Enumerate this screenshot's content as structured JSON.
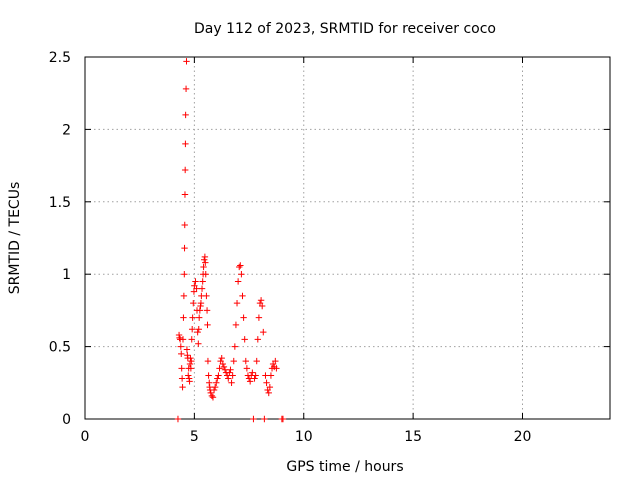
{
  "chart_data": {
    "type": "scatter",
    "title": "Day 112 of 2023, SRMTID for receiver coco",
    "xlabel": "GPS time / hours",
    "ylabel": "SRMTID / TECUs",
    "xlim": [
      0,
      24
    ],
    "ylim": [
      0,
      2.5
    ],
    "xticks": [
      0,
      5,
      10,
      15,
      20
    ],
    "yticks": [
      0,
      0.5,
      1,
      1.5,
      2,
      2.5
    ],
    "grid": true,
    "marker": "+",
    "color": "#ff0000",
    "series": [
      {
        "name": "SRMTID",
        "x": [
          4.25,
          4.3,
          4.32,
          4.35,
          4.38,
          4.4,
          4.42,
          4.44,
          4.46,
          4.48,
          4.5,
          4.52,
          4.54,
          4.55,
          4.56,
          4.57,
          4.58,
          4.59,
          4.6,
          4.62,
          4.64,
          4.66,
          4.68,
          4.7,
          4.72,
          4.74,
          4.76,
          4.78,
          4.8,
          4.82,
          4.84,
          4.86,
          4.88,
          4.9,
          4.92,
          4.95,
          4.98,
          5.0,
          5.05,
          5.1,
          5.12,
          5.15,
          5.18,
          5.2,
          5.22,
          5.25,
          5.28,
          5.3,
          5.32,
          5.35,
          5.38,
          5.4,
          5.42,
          5.45,
          5.48,
          5.5,
          5.52,
          5.55,
          5.58,
          5.6,
          5.62,
          5.65,
          5.68,
          5.7,
          5.72,
          5.75,
          5.8,
          5.85,
          5.9,
          5.95,
          6.0,
          6.05,
          6.1,
          6.15,
          6.2,
          6.25,
          6.3,
          6.35,
          6.4,
          6.45,
          6.5,
          6.55,
          6.6,
          6.65,
          6.7,
          6.75,
          6.8,
          6.85,
          6.9,
          6.95,
          7.0,
          7.05,
          7.1,
          7.15,
          7.2,
          7.25,
          7.3,
          7.35,
          7.4,
          7.45,
          7.5,
          7.55,
          7.6,
          7.65,
          7.7,
          7.75,
          7.8,
          7.85,
          7.9,
          7.95,
          8.0,
          8.05,
          8.1,
          8.15,
          8.2,
          8.25,
          8.3,
          8.35,
          8.4,
          8.45,
          8.5,
          8.55,
          8.6,
          8.65,
          8.7,
          8.75,
          9.0,
          9.05
        ],
        "y": [
          0.0,
          0.58,
          0.56,
          0.55,
          0.5,
          0.45,
          0.35,
          0.28,
          0.22,
          0.55,
          0.7,
          0.85,
          1.0,
          1.18,
          1.34,
          1.55,
          1.72,
          1.9,
          2.1,
          2.28,
          2.47,
          0.48,
          0.44,
          0.42,
          0.3,
          0.35,
          0.28,
          0.26,
          0.38,
          0.42,
          0.35,
          0.4,
          0.55,
          0.62,
          0.7,
          0.8,
          0.88,
          0.92,
          0.95,
          0.9,
          0.75,
          0.6,
          0.52,
          0.62,
          0.7,
          0.75,
          0.78,
          0.8,
          0.85,
          0.9,
          0.95,
          1.0,
          1.05,
          1.1,
          1.12,
          1.08,
          1.0,
          0.85,
          0.75,
          0.65,
          0.4,
          0.3,
          0.25,
          0.22,
          0.2,
          0.18,
          0.16,
          0.15,
          0.2,
          0.22,
          0.25,
          0.28,
          0.3,
          0.35,
          0.4,
          0.42,
          0.38,
          0.36,
          0.34,
          0.32,
          0.3,
          0.28,
          0.32,
          0.34,
          0.25,
          0.3,
          0.4,
          0.5,
          0.65,
          0.8,
          0.95,
          1.05,
          1.06,
          1.0,
          0.85,
          0.7,
          0.55,
          0.4,
          0.35,
          0.3,
          0.28,
          0.26,
          0.3,
          0.32,
          0.0,
          0.28,
          0.3,
          0.4,
          0.55,
          0.7,
          0.8,
          0.82,
          0.78,
          0.6,
          0.0,
          0.3,
          0.25,
          0.2,
          0.18,
          0.22,
          0.3,
          0.35,
          0.38,
          0.36,
          0.4,
          0.35,
          0.0,
          0.0
        ]
      }
    ]
  }
}
